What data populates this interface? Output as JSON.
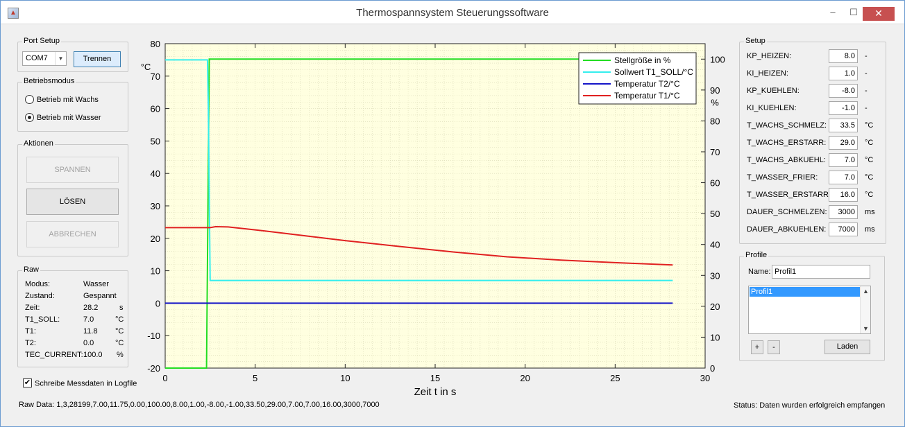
{
  "window": {
    "title": "Thermospannsystem Steuerungssoftware",
    "minimize_symbol": "–",
    "maximize_symbol": "☐",
    "close_symbol": "✕"
  },
  "port_setup": {
    "title": "Port Setup",
    "port_value": "COM7",
    "disconnect_label": "Trennen"
  },
  "betriebsmodus": {
    "title": "Betriebsmodus",
    "options": [
      {
        "label": "Betrieb mit Wachs",
        "selected": false
      },
      {
        "label": "Betrieb mit Wasser",
        "selected": true
      }
    ]
  },
  "aktionen": {
    "title": "Aktionen",
    "buttons": [
      {
        "label": "SPANNEN",
        "enabled": false
      },
      {
        "label": "LÖSEN",
        "enabled": true
      },
      {
        "label": "ABBRECHEN",
        "enabled": false
      }
    ]
  },
  "raw": {
    "title": "Raw",
    "rows": [
      {
        "label": "Modus:",
        "value": "Wasser",
        "unit": ""
      },
      {
        "label": "Zustand:",
        "value": "Gespannt",
        "unit": ""
      },
      {
        "label": "Zeit:",
        "value": "28.2",
        "unit": "s"
      },
      {
        "label": "T1_SOLL:",
        "value": "7.0",
        "unit": "°C"
      },
      {
        "label": "T1:",
        "value": "11.8",
        "unit": "°C"
      },
      {
        "label": "T2:",
        "value": "0.0",
        "unit": "°C"
      },
      {
        "label": "TEC_CURRENT:",
        "value": "100.0",
        "unit": "%"
      }
    ]
  },
  "logfile_checkbox": {
    "label": "Schreibe Messdaten in Logfile",
    "checked": true
  },
  "raw_data": {
    "label": "Raw Data:",
    "value": "1,3,28199,7.00,11.75,0.00,100.00,8.00,1.00,-8.00,-1.00,33.50,29.00,7.00,7.00,16.00,3000,7000"
  },
  "status": {
    "text": "Status: Daten wurden erfolgreich empfangen"
  },
  "setup": {
    "title": "Setup",
    "rows": [
      {
        "label": "KP_HEIZEN:",
        "value": "8.0",
        "unit": "-"
      },
      {
        "label": "KI_HEIZEN:",
        "value": "1.0",
        "unit": "-"
      },
      {
        "label": "KP_KUEHLEN:",
        "value": "-8.0",
        "unit": "-"
      },
      {
        "label": "KI_KUEHLEN:",
        "value": "-1.0",
        "unit": "-"
      },
      {
        "label": "T_WACHS_SCHMELZ:",
        "value": "33.5",
        "unit": "°C"
      },
      {
        "label": "T_WACHS_ERSTARR:",
        "value": "29.0",
        "unit": "°C"
      },
      {
        "label": "T_WACHS_ABKUEHL:",
        "value": "7.0",
        "unit": "°C"
      },
      {
        "label": "T_WASSER_FRIER:",
        "value": "7.0",
        "unit": "°C"
      },
      {
        "label": "T_WASSER_ERSTARR:",
        "value": "16.0",
        "unit": "°C"
      },
      {
        "label": "DAUER_SCHMELZEN:",
        "value": "3000",
        "unit": "ms"
      },
      {
        "label": "DAUER_ABKUEHLEN:",
        "value": "7000",
        "unit": "ms"
      }
    ]
  },
  "profile": {
    "title": "Profile",
    "name_label": "Name:",
    "name_value": "Profil1",
    "items": [
      "Profil1"
    ],
    "add_label": "+",
    "remove_label": "-",
    "load_label": "Laden"
  },
  "colors": {
    "plot_bg": "#ffffe0",
    "stellgroesse": "#22dd22",
    "sollwert": "#33eeee",
    "t2": "#1515c8",
    "t1": "#e02020",
    "selection": "#3399ff"
  },
  "chart_data": {
    "type": "line",
    "xlabel": "Zeit t in s",
    "ylabel_left": "°C",
    "ylabel_right": "%",
    "xlim": [
      0,
      30
    ],
    "ylim_left": [
      -20,
      80
    ],
    "ylim_right": [
      0,
      105
    ],
    "xticks": [
      0,
      5,
      10,
      15,
      20,
      25,
      30
    ],
    "yticks_left": [
      -20,
      -10,
      0,
      10,
      20,
      30,
      40,
      50,
      60,
      70,
      80
    ],
    "yticks_right": [
      0,
      10,
      20,
      30,
      40,
      50,
      60,
      70,
      80,
      90,
      100
    ],
    "grid": true,
    "legend_position": "top-right",
    "series": [
      {
        "name": "Stellgröße in %",
        "axis": "right",
        "color": "#22dd22",
        "x": [
          0,
          2.25,
          2.3,
          2.45,
          28.2
        ],
        "y": [
          0,
          0,
          0,
          100,
          100
        ]
      },
      {
        "name": "Sollwert T1_SOLL/°C",
        "axis": "left",
        "color": "#33eeee",
        "x": [
          0,
          2.35,
          2.4,
          2.5,
          28.2
        ],
        "y": [
          75,
          75,
          60,
          7,
          7
        ]
      },
      {
        "name": "Temperatur T2/°C",
        "axis": "left",
        "color": "#1515c8",
        "x": [
          0,
          28.2
        ],
        "y": [
          0,
          0
        ]
      },
      {
        "name": "Temperatur T1/°C",
        "axis": "left",
        "color": "#e02020",
        "x": [
          0,
          2.5,
          2.8,
          3.5,
          5,
          7,
          10,
          13,
          16,
          19,
          22,
          25,
          28.2
        ],
        "y": [
          23.3,
          23.3,
          23.6,
          23.5,
          22.6,
          21.3,
          19.3,
          17.5,
          15.8,
          14.3,
          13.3,
          12.5,
          11.8
        ]
      }
    ]
  }
}
